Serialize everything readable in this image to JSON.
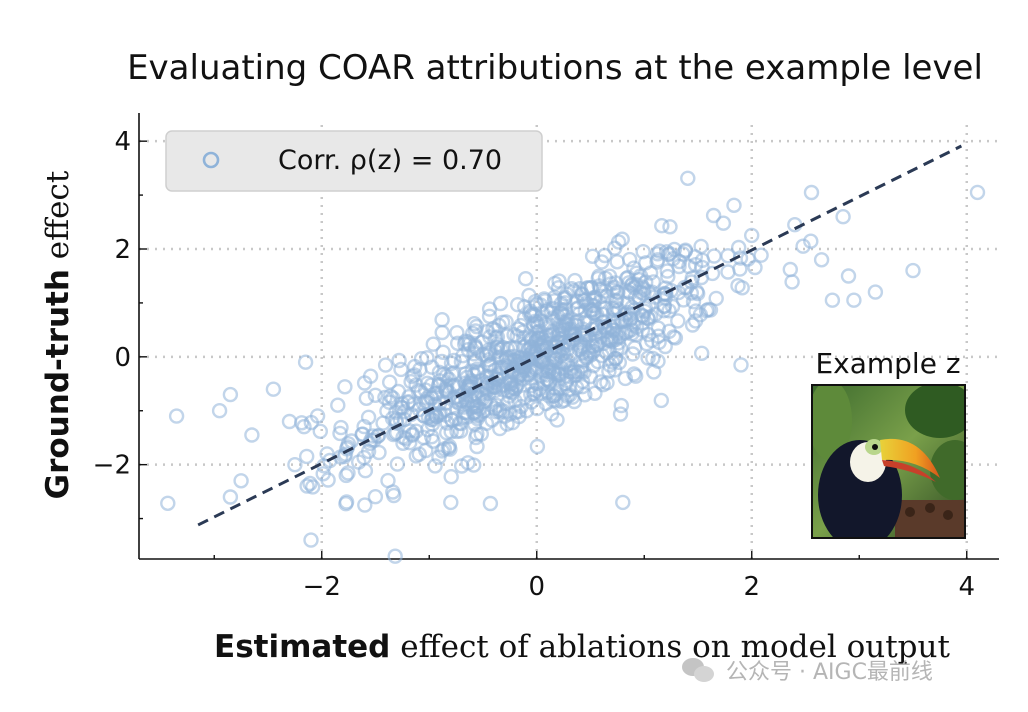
{
  "chart_data": {
    "type": "scatter",
    "title": "Evaluating COAR attributions at the example level",
    "xlabel_bold": "Estimated",
    "xlabel_rest": " effect of ablations on model output",
    "ylabel_bold": "Ground-truth",
    "ylabel_rest": " effect",
    "xlim": [
      -3.7,
      4.3
    ],
    "ylim": [
      -3.75,
      4.3
    ],
    "xticks": [
      -2,
      0,
      2,
      4
    ],
    "yticks": [
      -2,
      0,
      2,
      4
    ],
    "xtick_labels": [
      "−2",
      "0",
      "2",
      "4"
    ],
    "ytick_labels": [
      "−2",
      "0",
      "2",
      "4"
    ],
    "grid": true,
    "legend_position": "top-left",
    "series": [
      {
        "name": "Corr. ρ(z) = 0.70",
        "marker": "hollow-circle",
        "color": "#8fb3d9",
        "correlation": 0.7,
        "n_points": 900,
        "x_mean": 0.0,
        "x_std": 1.0,
        "outliers": [
          [
            -3.35,
            -1.1
          ],
          [
            -2.95,
            -1.0
          ],
          [
            -2.85,
            -0.7
          ],
          [
            -2.65,
            -1.45
          ],
          [
            -2.45,
            -0.6
          ],
          [
            -2.3,
            -1.2
          ],
          [
            -2.25,
            -2.0
          ],
          [
            -2.15,
            -0.1
          ],
          [
            -2.1,
            -3.4
          ],
          [
            -2.85,
            -2.6
          ],
          [
            -2.75,
            -2.3
          ],
          [
            -1.95,
            -1.8
          ],
          [
            -1.6,
            -2.75
          ],
          [
            3.5,
            1.6
          ],
          [
            4.1,
            3.05
          ],
          [
            3.15,
            1.2
          ],
          [
            2.95,
            1.05
          ],
          [
            2.75,
            1.05
          ],
          [
            2.85,
            2.6
          ],
          [
            2.65,
            1.8
          ],
          [
            2.9,
            1.5
          ],
          [
            2.4,
            2.45
          ],
          [
            1.9,
            -0.15
          ],
          [
            0.8,
            -2.7
          ],
          [
            -0.8,
            -2.7
          ]
        ]
      }
    ],
    "trend_line": {
      "style": "dashed",
      "color": "#2b3a55",
      "slope": 0.99,
      "intercept": 0.0,
      "x_range": [
        -3.15,
        3.95
      ]
    }
  },
  "inset": {
    "label": "Example z",
    "image_description_icon": "toucan-image"
  },
  "watermark": {
    "text": "公众号 · AIGC最前线",
    "icon": "wechat-icon"
  }
}
